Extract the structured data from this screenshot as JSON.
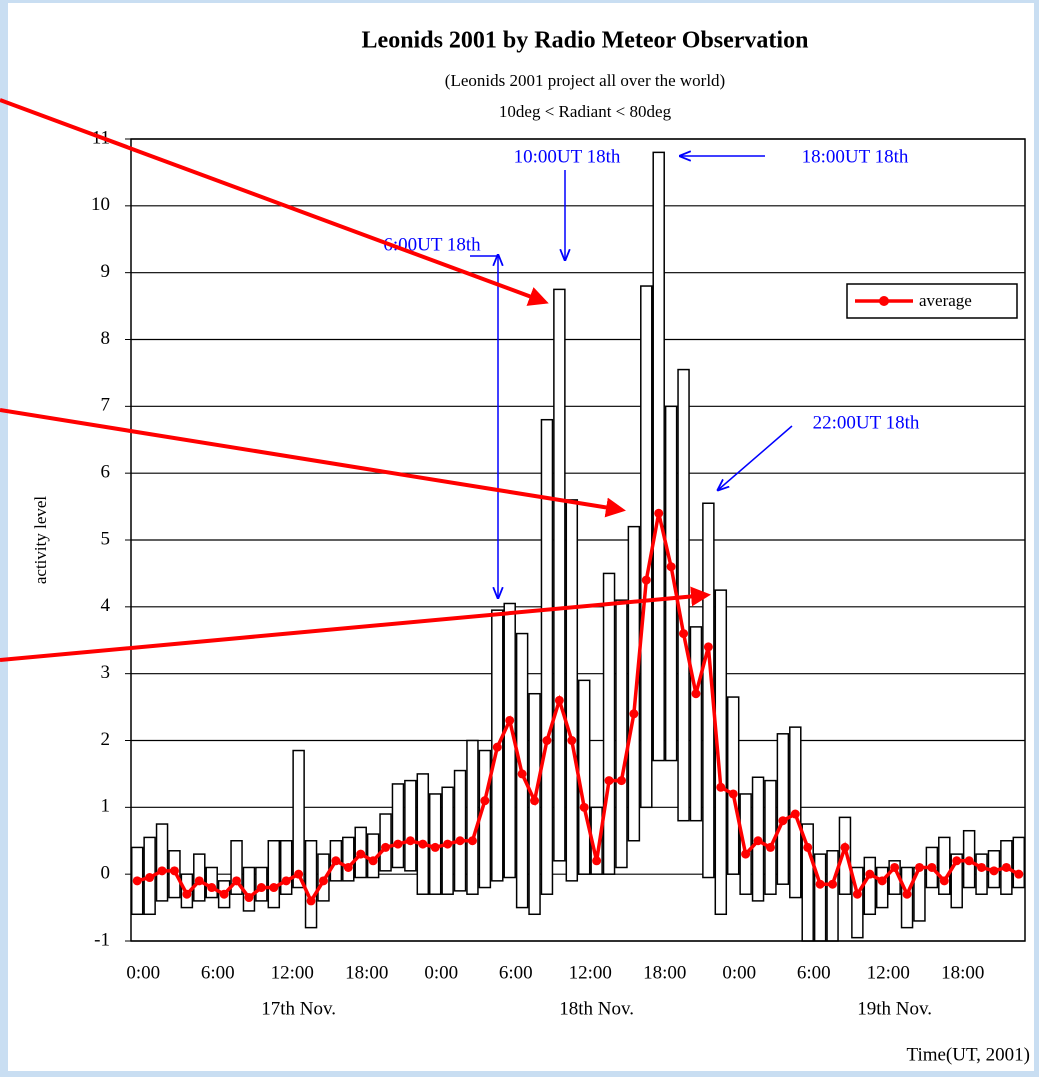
{
  "chart_data": {
    "type": "range-bar",
    "title": "Leonids 2001 by Radio Meteor Observation",
    "subtitle": [
      "(Leonids 2001 project all over the world)",
      "10deg < Radiant < 80deg"
    ],
    "y_label": "activity level",
    "x_label": "Time(UT, 2001)",
    "x_groups": [
      "17th Nov.",
      "18th Nov.",
      "19th Nov."
    ],
    "x": [
      0,
      1,
      2,
      3,
      4,
      5,
      6,
      7,
      8,
      9,
      10,
      11,
      12,
      13,
      14,
      15,
      16,
      17,
      18,
      19,
      20,
      21,
      22,
      23,
      24,
      25,
      26,
      27,
      28,
      29,
      30,
      31,
      32,
      33,
      34,
      35,
      36,
      37,
      38,
      39,
      40,
      41,
      42,
      43,
      44,
      45,
      46,
      47,
      48,
      49,
      50,
      51,
      52,
      53,
      54,
      55,
      56,
      57,
      58,
      59,
      60,
      61,
      62,
      63,
      64,
      65,
      66,
      67,
      68,
      69,
      70,
      71
    ],
    "xlim": [
      -0.5,
      71.5
    ],
    "xticks": [
      {
        "value": 0,
        "label": "0:00"
      },
      {
        "value": 6,
        "label": "6:00"
      },
      {
        "value": 12,
        "label": "12:00"
      },
      {
        "value": 18,
        "label": "18:00"
      },
      {
        "value": 24,
        "label": "0:00"
      },
      {
        "value": 30,
        "label": "6:00"
      },
      {
        "value": 36,
        "label": "12:00"
      },
      {
        "value": 42,
        "label": "18:00"
      },
      {
        "value": 48,
        "label": "0:00"
      },
      {
        "value": 54,
        "label": "6:00"
      },
      {
        "value": 60,
        "label": "12:00"
      },
      {
        "value": 66,
        "label": "18:00"
      }
    ],
    "ylim": [
      -1,
      11
    ],
    "yticks": [
      -1,
      0,
      1,
      2,
      3,
      4,
      5,
      6,
      7,
      8,
      9,
      10,
      11
    ],
    "grid": true,
    "bars": {
      "color": "#ffffff",
      "low": [
        -0.6,
        -0.6,
        -0.4,
        -0.35,
        -0.5,
        -0.4,
        -0.35,
        -0.5,
        -0.3,
        -0.55,
        -0.4,
        -0.5,
        -0.3,
        -0.2,
        -0.8,
        -0.4,
        -0.1,
        -0.1,
        -0.05,
        -0.05,
        0.05,
        0.1,
        0.05,
        -0.3,
        -0.3,
        -0.3,
        -0.25,
        -0.3,
        -0.2,
        -0.1,
        -0.05,
        -0.5,
        -0.6,
        -0.3,
        0.2,
        -0.1,
        0,
        0,
        0,
        0.1,
        0.5,
        1,
        1.7,
        1.7,
        0.8,
        0.8,
        -0.05,
        -0.6,
        0,
        -0.3,
        -0.4,
        -0.3,
        -0.15,
        -0.35,
        -1,
        -1,
        -1,
        -0.3,
        -0.95,
        -0.6,
        -0.5,
        -0.3,
        -0.8,
        -0.7,
        -0.2,
        -0.3,
        -0.5,
        -0.2,
        -0.3,
        -0.2,
        -0.3,
        -0.2
      ],
      "high": [
        0.4,
        0.55,
        0.75,
        0.35,
        0,
        0.3,
        0.1,
        -0.1,
        0.5,
        0.1,
        0.1,
        0.5,
        0.5,
        1.85,
        0.5,
        0.3,
        0.5,
        0.55,
        0.7,
        0.6,
        0.9,
        1.35,
        1.4,
        1.5,
        1.2,
        1.3,
        1.55,
        2,
        1.85,
        3.95,
        4.05,
        3.6,
        2.7,
        6.8,
        8.75,
        5.6,
        2.9,
        1,
        4.5,
        4.1,
        5.2,
        8.8,
        10.8,
        7,
        7.55,
        3.7,
        5.55,
        4.25,
        2.65,
        1.2,
        1.45,
        1.4,
        2.1,
        2.2,
        0.75,
        0.3,
        0.35,
        0.85,
        0.1,
        0.25,
        0.1,
        0.2,
        0.1,
        0.1,
        0.4,
        0.55,
        0.3,
        0.65,
        0.3,
        0.35,
        0.5,
        0.55
      ]
    },
    "series": [
      {
        "name": "average",
        "color": "#ff0000",
        "values": [
          -0.1,
          -0.05,
          0.05,
          0.05,
          -0.3,
          -0.1,
          -0.2,
          -0.3,
          -0.1,
          -0.35,
          -0.2,
          -0.2,
          -0.1,
          0,
          -0.4,
          -0.1,
          0.2,
          0.1,
          0.3,
          0.2,
          0.4,
          0.45,
          0.5,
          0.45,
          0.4,
          0.45,
          0.5,
          0.5,
          1.1,
          1.9,
          2.3,
          1.5,
          1.1,
          2,
          2.6,
          2,
          1,
          0.2,
          1.4,
          1.4,
          2.4,
          4.4,
          5.4,
          4.6,
          3.6,
          2.7,
          3.4,
          1.3,
          1.2,
          0.3,
          0.5,
          0.4,
          0.8,
          0.9,
          0.4,
          -0.15,
          -0.15,
          0.4,
          -0.3,
          0,
          -0.1,
          0.1,
          -0.3,
          0.1,
          0.1,
          -0.1,
          0.2,
          0.2,
          0.1,
          0.05,
          0.1,
          0
        ]
      }
    ],
    "legend": "upper right",
    "annotations": [
      "6:00UT 18th",
      "10:00UT 18th",
      "18:00UT 18th",
      "22:00UT 18th"
    ],
    "annotation_color": "#0000ff"
  }
}
